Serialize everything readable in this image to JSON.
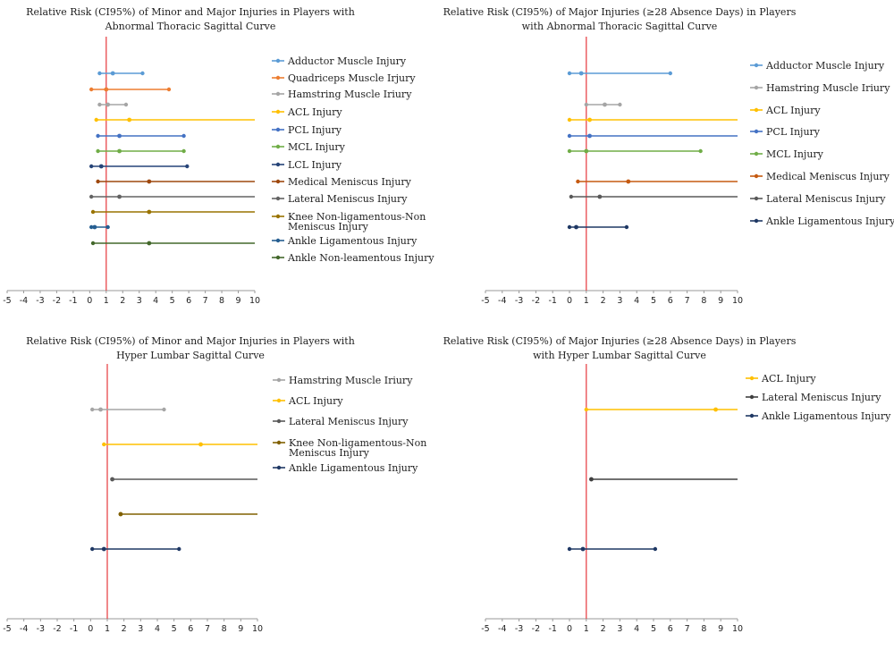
{
  "chart_data": [
    {
      "type": "forest",
      "title": "Relative Risk (CI95%) of Minor and Major Injuries in Players with Abnormal Thoracic Sagittal Curve",
      "title_lines": [
        "Relative Risk (CI95%) of Minor and Major Injuries in Players with",
        "Abnormal Thoracic Sagittal Curve"
      ],
      "xlim": [
        -5,
        10
      ],
      "xticks": [
        "-5",
        "-4",
        "-3",
        "-2",
        "-1",
        "0",
        "1",
        "2",
        "3",
        "4",
        "5",
        "6",
        "7",
        "8",
        "9",
        "10"
      ],
      "reference_line": 1,
      "series": [
        {
          "name": "Adductor Muscle Injury",
          "color": "#5b9bd5",
          "low": 0.6,
          "rr": 1.4,
          "high": 3.2
        },
        {
          "name": "Quadriceps Muscle Irjury",
          "color": "#ed7d31",
          "low": 0.1,
          "rr": 1.0,
          "high": 4.8
        },
        {
          "name": "Hamstring Muscle Iriury",
          "color": "#a5a5a5",
          "low": 0.6,
          "rr": 1.1,
          "high": 2.2
        },
        {
          "name": "ACL Injury",
          "color": "#ffc000",
          "low": 0.4,
          "rr": 2.4,
          "high": 10
        },
        {
          "name": "PCL Injury",
          "color": "#4472c4",
          "low": 0.5,
          "rr": 1.8,
          "high": 5.7
        },
        {
          "name": "MCL Injury",
          "color": "#70ad47",
          "low": 0.5,
          "rr": 1.8,
          "high": 5.7
        },
        {
          "name": "LCL Injury",
          "color": "#264478",
          "low": 0.1,
          "rr": 0.7,
          "high": 5.9
        },
        {
          "name": "Medical Meniscus Injury",
          "color": "#9e480e",
          "low": 0.5,
          "rr": 3.6,
          "high": 10
        },
        {
          "name": "Lateral Meniscus Injury",
          "color": "#636363",
          "low": 0.1,
          "rr": 1.8,
          "high": 10
        },
        {
          "name": "Knee Non-ligamentous-Non Meniscus Injury",
          "color": "#997300",
          "low": 0.2,
          "rr": 3.6,
          "high": 10
        },
        {
          "name": "Ankle Ligamentous Injury",
          "color": "#255e91",
          "low": 0.1,
          "rr": 0.3,
          "high": 1.1
        },
        {
          "name": "Ankle Non-leamentous Injury",
          "color": "#43682b",
          "low": 0.2,
          "rr": 3.6,
          "high": 10
        }
      ]
    },
    {
      "type": "forest",
      "title": "Relative Risk (CI95%) of Major Injuries (≥28 Absence Days) in Players with Abnormal Thoracic Sagittal Curve",
      "title_lines": [
        "Relative Risk (CI95%) of  Major Injuries (≥28 Absence Days) in Players",
        "with Abnormal Thoracic Sagittal Curve"
      ],
      "xlim": [
        -5,
        10
      ],
      "xticks": [
        "-5",
        "-4",
        "-3",
        "-2",
        "-1",
        "0",
        "1",
        "2",
        "3",
        "4",
        "5",
        "6",
        "7",
        "8",
        "9",
        "10"
      ],
      "reference_line": 1,
      "series": [
        {
          "name": "Adductor Muscle Injury",
          "color": "#5b9bd5",
          "low": 0.0,
          "rr": 0.7,
          "high": 6.0
        },
        {
          "name": "Hamstring Muscle Iriury",
          "color": "#a5a5a5",
          "low": 1.0,
          "rr": 2.1,
          "high": 3.0
        },
        {
          "name": "ACL Injury",
          "color": "#ffc000",
          "low": 0.0,
          "rr": 1.2,
          "high": 10
        },
        {
          "name": "PCL Injury",
          "color": "#4472c4",
          "low": 0.0,
          "rr": 1.2,
          "high": 10
        },
        {
          "name": "MCL Injury",
          "color": "#70ad47",
          "low": 0.0,
          "rr": 1.0,
          "high": 7.8
        },
        {
          "name": "Medical Meniscus Injury",
          "color": "#c55a11",
          "low": 0.5,
          "rr": 3.5,
          "high": 10
        },
        {
          "name": "Lateral Meniscus Injury",
          "color": "#595959",
          "low": 0.1,
          "rr": 1.8,
          "high": 10
        },
        {
          "name": "Ankle Ligamentous Injury",
          "color": "#1f3864",
          "low": 0.0,
          "rr": 0.4,
          "high": 3.4
        }
      ]
    },
    {
      "type": "forest",
      "title": "Relative Risk (CI95%) of Minor and Major Injuries in Players with Hyper Lumbar Sagittal Curve",
      "title_lines": [
        "Relative Risk (CI95%) of Minor and Major Injuries in Players with",
        "Hyper Lumbar Sagittal Curve"
      ],
      "xlim": [
        -5,
        10
      ],
      "xticks": [
        "-5",
        "-4",
        "-3",
        "-2",
        "-1",
        "0",
        "1",
        "2",
        "3",
        "4",
        "5",
        "6",
        "7",
        "8",
        "9",
        "10"
      ],
      "reference_line": 1,
      "series": [
        {
          "name": "Hamstring Muscle Iriury",
          "color": "#a5a5a5",
          "low": 0.1,
          "rr": 0.6,
          "high": 4.4
        },
        {
          "name": "ACL Injury",
          "color": "#ffc000",
          "low": 0.8,
          "rr": 6.6,
          "high": 10
        },
        {
          "name": "Lateral Meniscus Injury",
          "color": "#595959",
          "low": 1.3,
          "rr": 1.3,
          "high": 10
        },
        {
          "name": "Knee Non-ligamentous-Non Meniscus Injury",
          "color": "#806000",
          "low": 1.8,
          "rr": 1.8,
          "high": 10
        },
        {
          "name": "Ankle Ligamentous Injury",
          "color": "#1f3864",
          "low": 0.1,
          "rr": 0.8,
          "high": 5.3
        }
      ]
    },
    {
      "type": "forest",
      "title": "Relative Risk (CI95%) of Major Injuries (≥28 Absence Days) in Players with Hyper Lumbar Sagittal Curve",
      "title_lines": [
        "Relative Risk (CI95%) of  Major Injuries (≥28 Absence Days) in Players",
        "with Hyper Lumbar Sagittal Curve"
      ],
      "xlim": [
        -5,
        10
      ],
      "xticks": [
        "-5",
        "-4",
        "-3",
        "-2",
        "-1",
        "0",
        "1",
        "2",
        "3",
        "4",
        "5",
        "6",
        "7",
        "8",
        "9",
        "10"
      ],
      "reference_line": 1,
      "series": [
        {
          "name": "ACL Injury",
          "color": "#ffc000",
          "low": 1.0,
          "rr": 8.7,
          "high": 10
        },
        {
          "name": "Lateral Meniscus Injury",
          "color": "#404040",
          "low": 1.3,
          "rr": 1.3,
          "high": 10
        },
        {
          "name": "Ankle Ligamentous Injury",
          "color": "#1f3864",
          "low": 0.0,
          "rr": 0.8,
          "high": 5.1
        }
      ]
    }
  ],
  "colors": {
    "reference_line": "#e8474b",
    "axis": "#999999"
  }
}
